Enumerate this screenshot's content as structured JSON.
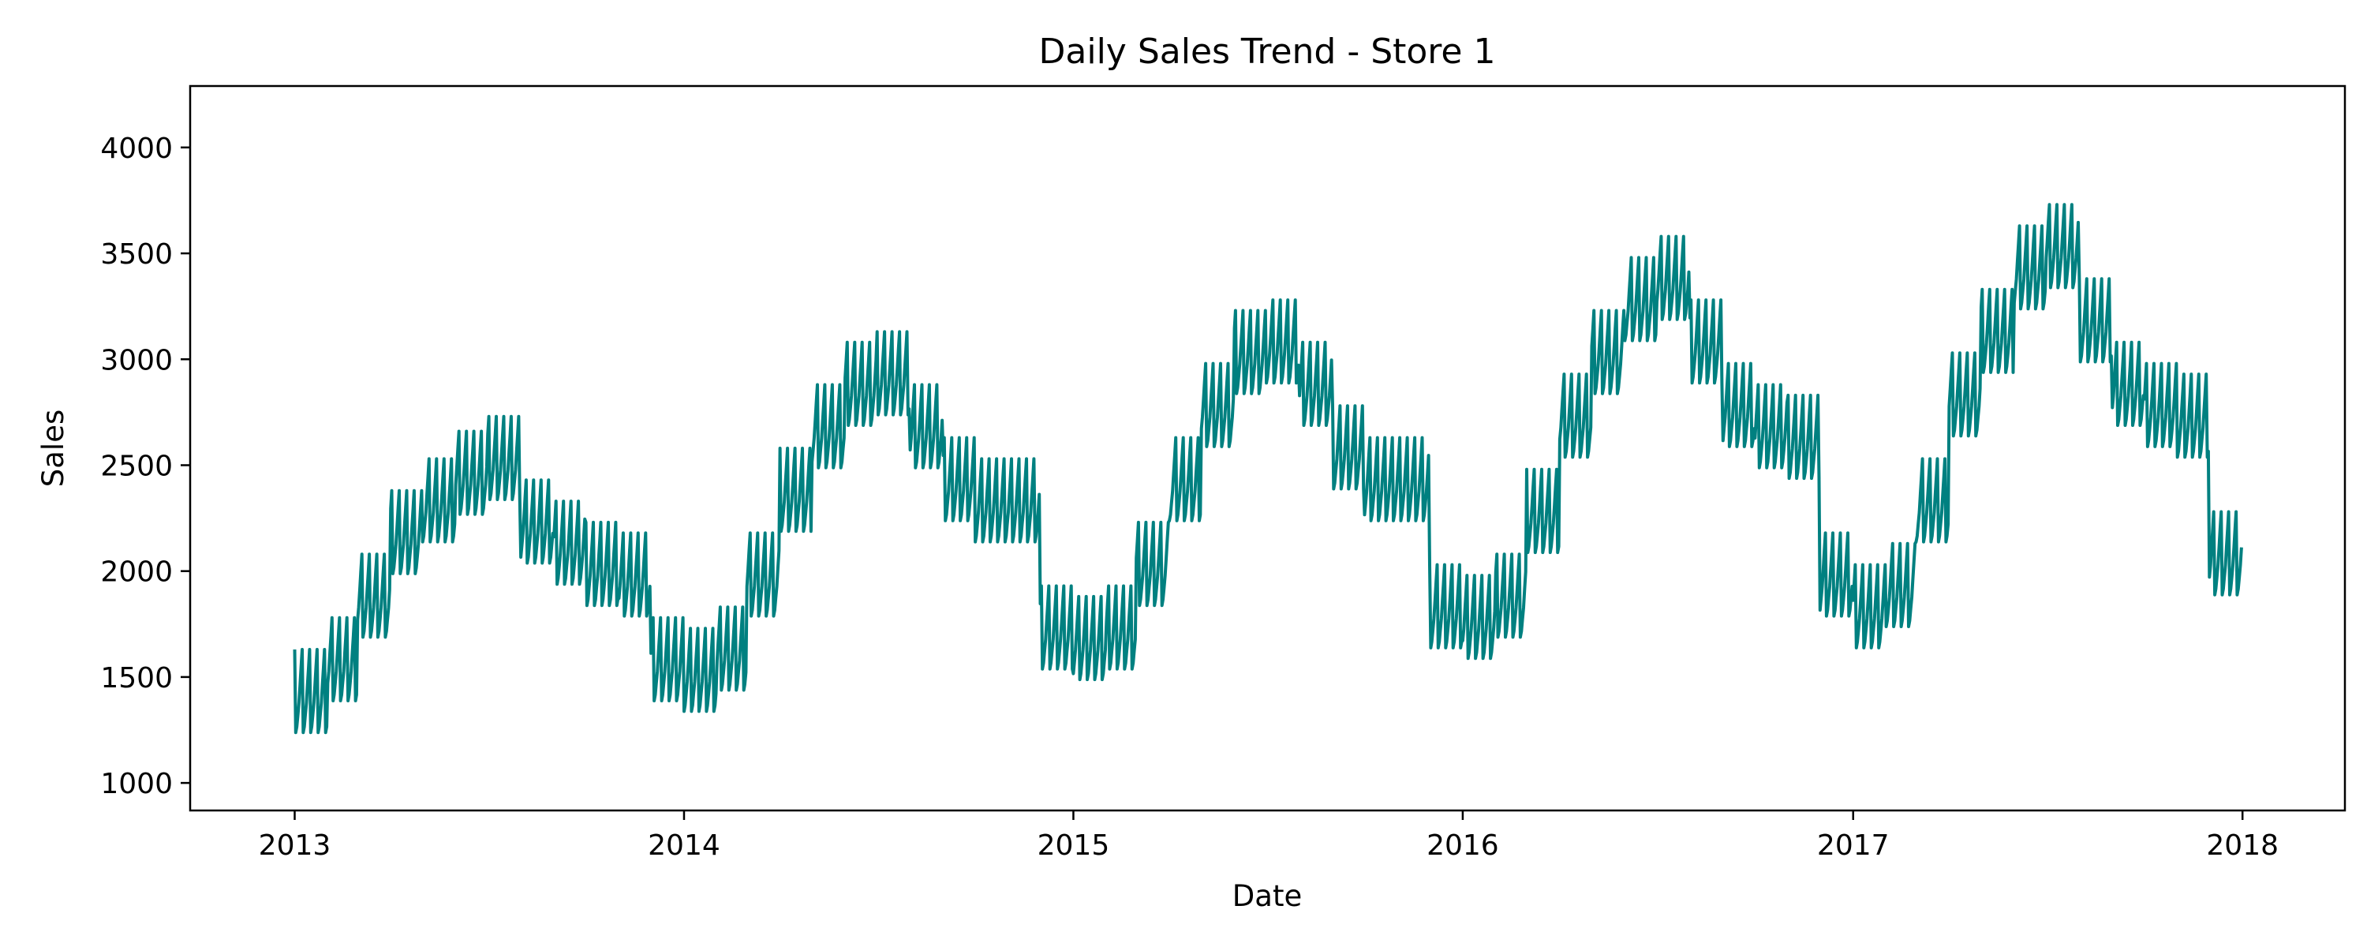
{
  "chart_data": {
    "type": "line",
    "title": "Daily Sales Trend - Store 1",
    "xlabel": "Date",
    "ylabel": "Sales",
    "x_range": [
      "2013-01-01",
      "2017-12-31"
    ],
    "xlim": [
      "2012-09-25",
      "2018-04-07"
    ],
    "ylim": [
      870,
      4290
    ],
    "x_ticks": [
      "2013",
      "2014",
      "2015",
      "2016",
      "2017",
      "2018"
    ],
    "y_ticks": [
      1000,
      1500,
      2000,
      2500,
      3000,
      3500,
      4000
    ],
    "grid": false,
    "legend": "none",
    "series": [
      {
        "name": "",
        "color": "#008080",
        "frequency": "daily",
        "weekly_swing_sales": 560,
        "monthly_base_sales": {
          "2013": [
            1350,
            1500,
            1800,
            2100,
            2250,
            2380,
            2450,
            2150,
            2050,
            1950,
            1900,
            1500
          ],
          "2014": [
            1450,
            1550,
            1900,
            2300,
            2600,
            2800,
            2850,
            2600,
            2350,
            2250,
            2250,
            1650
          ],
          "2015": [
            1600,
            1650,
            1950,
            2350,
            2700,
            2950,
            3000,
            2800,
            2500,
            2350,
            2350,
            1750
          ],
          "2016": [
            1700,
            1800,
            2200,
            2650,
            2950,
            3200,
            3300,
            3000,
            2700,
            2600,
            2550,
            1900
          ],
          "2017": [
            1750,
            1850,
            2250,
            2750,
            3050,
            3350,
            3450,
            3100,
            2800,
            2700,
            2650,
            2000
          ]
        }
      }
    ]
  }
}
